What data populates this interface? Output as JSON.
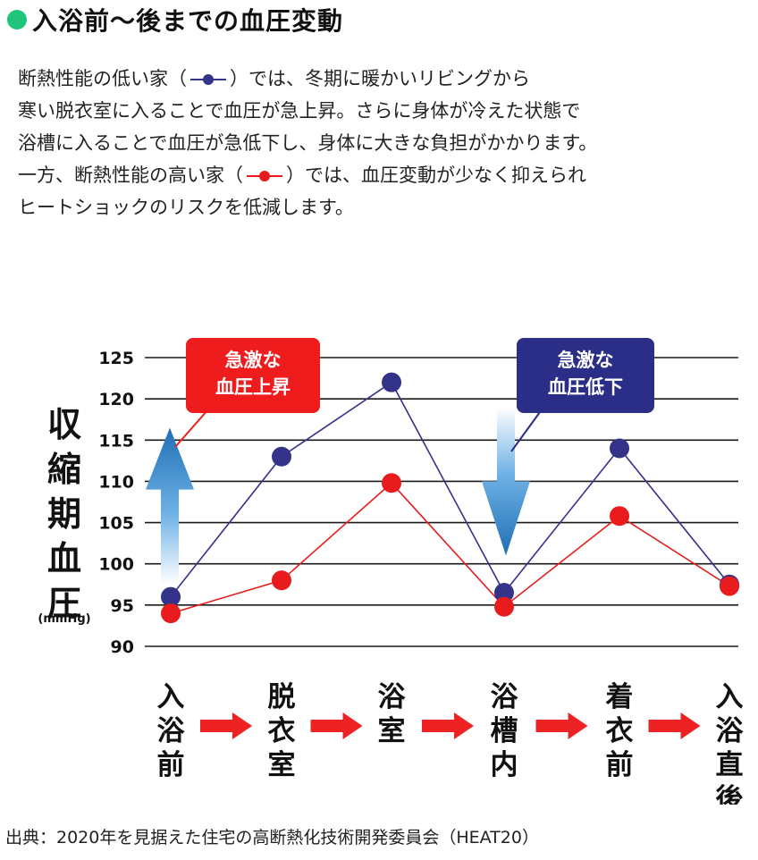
{
  "title": "入浴前〜後までの血圧変動",
  "description": {
    "line1_a": "断熱性能の低い家（",
    "line1_b": "）では、冬期に暖かいリビングから",
    "line2": "寒い脱衣室に入ることで血圧が急上昇。さらに身体が冷えた状態で",
    "line3": "浴槽に入ることで血圧が急低下し、身体に大きな負担がかかります。",
    "line4_a": "一方、断熱性能の高い家（",
    "line4_b": "）では、血圧変動が少なく抑えられ",
    "line5": "ヒートショックのリスクを低減します。"
  },
  "colors": {
    "low_insulation": "#33338a",
    "high_insulation": "#e81c1c",
    "title_dot": "#20c47a",
    "callout_red": "#ee1c1c",
    "callout_blue": "#2a2e86",
    "arrow": "#ee2222"
  },
  "chart_data": {
    "type": "line",
    "ylabel": "収縮期血圧",
    "yunit": "(mmHg)",
    "ylim": [
      90,
      125
    ],
    "yticks": [
      90,
      95,
      100,
      105,
      110,
      115,
      120,
      125
    ],
    "categories": [
      "入浴前",
      "脱衣室",
      "浴室",
      "浴槽内",
      "着衣前",
      "入浴直後"
    ],
    "series": [
      {
        "key": "low",
        "values": [
          96,
          113,
          122,
          96.5,
          114,
          97.5
        ]
      },
      {
        "key": "high",
        "values": [
          94,
          98,
          109.8,
          94.8,
          105.8,
          97.3
        ]
      }
    ],
    "grid": true,
    "annotations": [
      {
        "kind": "rise",
        "text": [
          "急激な",
          "血圧上昇"
        ]
      },
      {
        "kind": "drop",
        "text": [
          "急激な",
          "血圧低下"
        ]
      }
    ]
  },
  "source": "出典：2020年を見据えた住宅の高断熱化技術開発委員会（HEAT20）"
}
